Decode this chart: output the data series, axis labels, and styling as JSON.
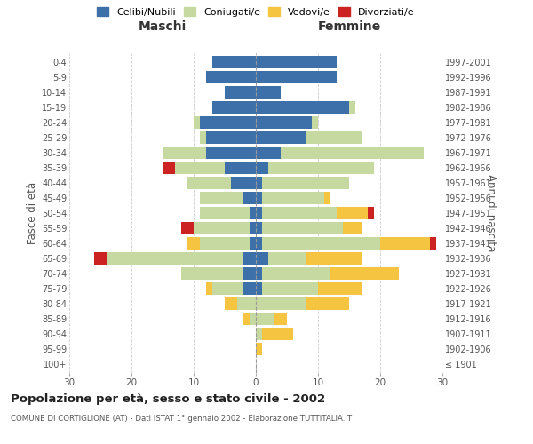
{
  "age_groups": [
    "100+",
    "95-99",
    "90-94",
    "85-89",
    "80-84",
    "75-79",
    "70-74",
    "65-69",
    "60-64",
    "55-59",
    "50-54",
    "45-49",
    "40-44",
    "35-39",
    "30-34",
    "25-29",
    "20-24",
    "15-19",
    "10-14",
    "5-9",
    "0-4"
  ],
  "birth_years": [
    "≤ 1901",
    "1902-1906",
    "1907-1911",
    "1912-1916",
    "1917-1921",
    "1922-1926",
    "1927-1931",
    "1932-1936",
    "1937-1941",
    "1942-1946",
    "1947-1951",
    "1952-1956",
    "1957-1961",
    "1962-1966",
    "1967-1971",
    "1972-1976",
    "1977-1981",
    "1982-1986",
    "1987-1991",
    "1992-1996",
    "1997-2001"
  ],
  "colors": {
    "celibi": "#3d6fa8",
    "coniugati": "#c5d9a0",
    "vedovi": "#f5c542",
    "divorziati": "#cc2222"
  },
  "maschi": {
    "celibi": [
      0,
      0,
      0,
      0,
      0,
      2,
      2,
      2,
      1,
      1,
      1,
      2,
      4,
      5,
      8,
      8,
      9,
      7,
      5,
      8,
      7
    ],
    "coniugati": [
      0,
      0,
      0,
      1,
      3,
      5,
      10,
      22,
      8,
      9,
      8,
      7,
      7,
      8,
      7,
      1,
      1,
      0,
      0,
      0,
      0
    ],
    "vedovi": [
      0,
      0,
      0,
      1,
      2,
      1,
      0,
      0,
      2,
      0,
      0,
      0,
      0,
      0,
      0,
      0,
      0,
      0,
      0,
      0,
      0
    ],
    "divorziati": [
      0,
      0,
      0,
      0,
      0,
      0,
      0,
      2,
      0,
      2,
      0,
      0,
      0,
      2,
      0,
      0,
      0,
      0,
      0,
      0,
      0
    ]
  },
  "femmine": {
    "celibi": [
      0,
      0,
      0,
      0,
      0,
      1,
      1,
      2,
      1,
      1,
      1,
      1,
      1,
      2,
      4,
      8,
      9,
      15,
      4,
      13,
      13
    ],
    "coniugati": [
      0,
      0,
      1,
      3,
      8,
      9,
      11,
      6,
      19,
      13,
      12,
      10,
      14,
      17,
      23,
      9,
      1,
      1,
      0,
      0,
      0
    ],
    "vedovi": [
      0,
      1,
      5,
      2,
      7,
      7,
      11,
      9,
      8,
      3,
      5,
      1,
      0,
      0,
      0,
      0,
      0,
      0,
      0,
      0,
      0
    ],
    "divorziati": [
      0,
      0,
      0,
      0,
      0,
      0,
      0,
      0,
      1,
      0,
      1,
      0,
      0,
      0,
      0,
      0,
      0,
      0,
      0,
      0,
      0
    ]
  },
  "xlim": 30,
  "title": "Popolazione per età, sesso e stato civile - 2002",
  "subtitle": "COMUNE DI CORTIGLIONE (AT) - Dati ISTAT 1° gennaio 2002 - Elaborazione TUTTITALIA.IT",
  "ylabel_left": "Fasce di età",
  "ylabel_right": "Anni di nascita",
  "xlabel_left": "Maschi",
  "xlabel_right": "Femmine",
  "legend_labels": [
    "Celibi/Nubili",
    "Coniugati/e",
    "Vedovi/e",
    "Divorziati/e"
  ],
  "background_color": "#ffffff",
  "grid_color": "#cccccc"
}
